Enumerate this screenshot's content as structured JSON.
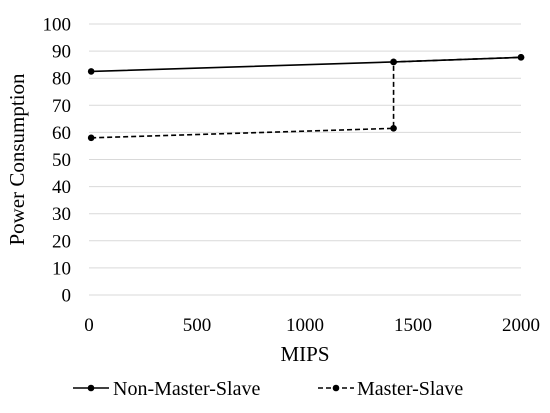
{
  "chart_data": {
    "type": "line",
    "title": "",
    "xlabel": "MIPS",
    "ylabel": "Power Consumption",
    "xlim": [
      0,
      2000
    ],
    "ylim": [
      0,
      100
    ],
    "x_ticks": [
      0,
      500,
      1000,
      1500,
      2000
    ],
    "y_ticks": [
      0,
      10,
      20,
      30,
      40,
      50,
      60,
      70,
      80,
      90,
      100
    ],
    "grid": "horizontal",
    "legend_position": "bottom",
    "series": [
      {
        "name": "Non-Master-Slave",
        "line_style": "solid",
        "color": "#000000",
        "points": [
          [
            10,
            82.5
          ],
          [
            1410,
            86
          ],
          [
            2000,
            87.7
          ]
        ]
      },
      {
        "name": "Master-Slave",
        "line_style": "dashed",
        "color": "#000000",
        "points": [
          [
            10,
            58
          ],
          [
            1410,
            61.5
          ],
          [
            1410,
            86
          ],
          [
            2000,
            87.7
          ]
        ]
      }
    ]
  }
}
